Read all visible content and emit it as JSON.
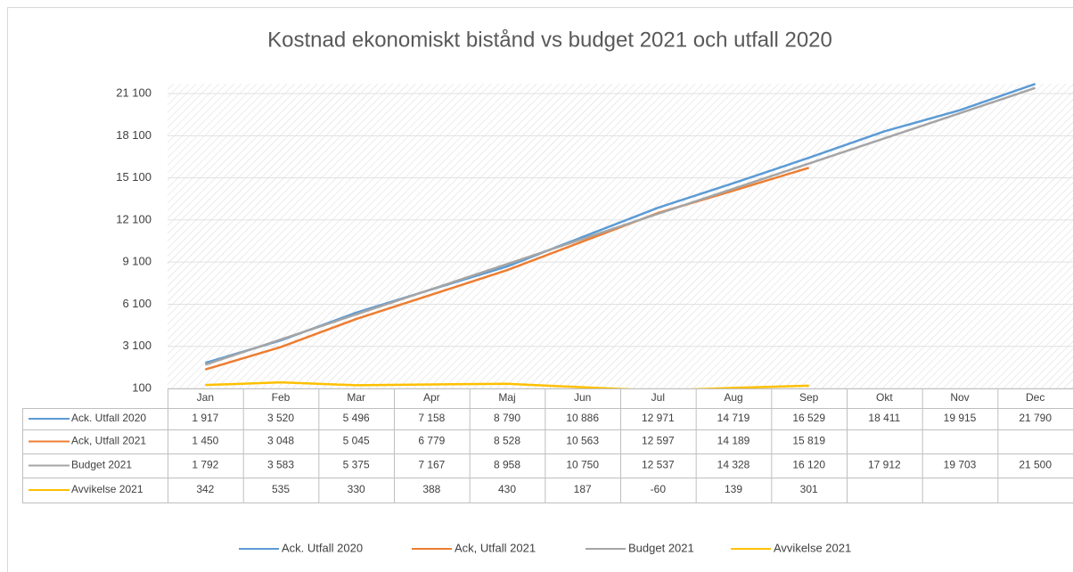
{
  "chart_data": {
    "type": "line",
    "title": "Kostnad ekonomiskt bistånd vs budget 2021 och utfall 2020",
    "categories": [
      "Jan",
      "Feb",
      "Mar",
      "Apr",
      "Maj",
      "Jun",
      "Jul",
      "Aug",
      "Sep",
      "Okt",
      "Nov",
      "Dec"
    ],
    "ylim": [
      100,
      21800
    ],
    "yticks": [
      100,
      {
        "value": 3100,
        "label": "3 100"
      },
      {
        "value": 6100,
        "label": "6 100"
      },
      {
        "value": 9100,
        "label": "9 100"
      },
      {
        "value": 12100,
        "label": "12 100"
      },
      {
        "value": 15100,
        "label": "15 100"
      },
      {
        "value": 18100,
        "label": "18 100"
      },
      {
        "value": 21100,
        "label": "21 100"
      }
    ],
    "grid": true,
    "legend": "bottom",
    "series": [
      {
        "name": "Ack. Utfall 2020",
        "color": "#5b9bd5",
        "values": [
          1917,
          3520,
          5496,
          7158,
          8790,
          10886,
          12971,
          14719,
          16529,
          18411,
          19915,
          21790
        ],
        "value_labels": [
          "1 917",
          "3 520",
          "5 496",
          "7 158",
          "8 790",
          "10 886",
          "12 971",
          "14 719",
          "16 529",
          "18 411",
          "19 915",
          "21 790"
        ]
      },
      {
        "name": "Ack, Utfall 2021",
        "color": "#ed7d31",
        "values": [
          1450,
          3048,
          5045,
          6779,
          8528,
          10563,
          12597,
          14189,
          15819,
          null,
          null,
          null
        ],
        "value_labels": [
          "1 450",
          "3 048",
          "5 045",
          "6 779",
          "8 528",
          "10 563",
          "12 597",
          "14 189",
          "15 819",
          null,
          null,
          null
        ]
      },
      {
        "name": "Budget 2021",
        "color": "#a5a5a5",
        "values": [
          1792,
          3583,
          5375,
          7167,
          8958,
          10750,
          12537,
          14328,
          16120,
          17912,
          19703,
          21500
        ],
        "value_labels": [
          "1 792",
          "3 583",
          "5 375",
          "7 167",
          "8 958",
          "10 750",
          "12 537",
          "14 328",
          "16 120",
          "17 912",
          "19 703",
          "21 500"
        ]
      },
      {
        "name": "Avvikelse 2021",
        "color": "#ffc000",
        "values": [
          342,
          535,
          330,
          388,
          430,
          187,
          -60,
          139,
          301,
          null,
          null,
          null
        ]
      }
    ]
  }
}
